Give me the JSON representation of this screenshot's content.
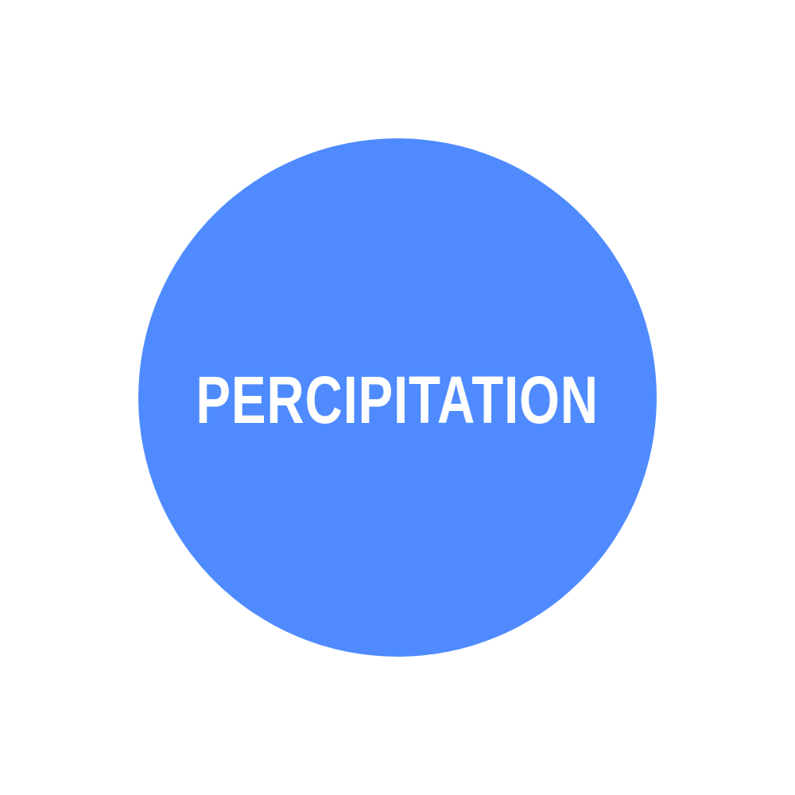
{
  "badge": {
    "label": "PERCIPITATION",
    "circle_color": "#4f8bff",
    "text_color": "#ffffff"
  }
}
